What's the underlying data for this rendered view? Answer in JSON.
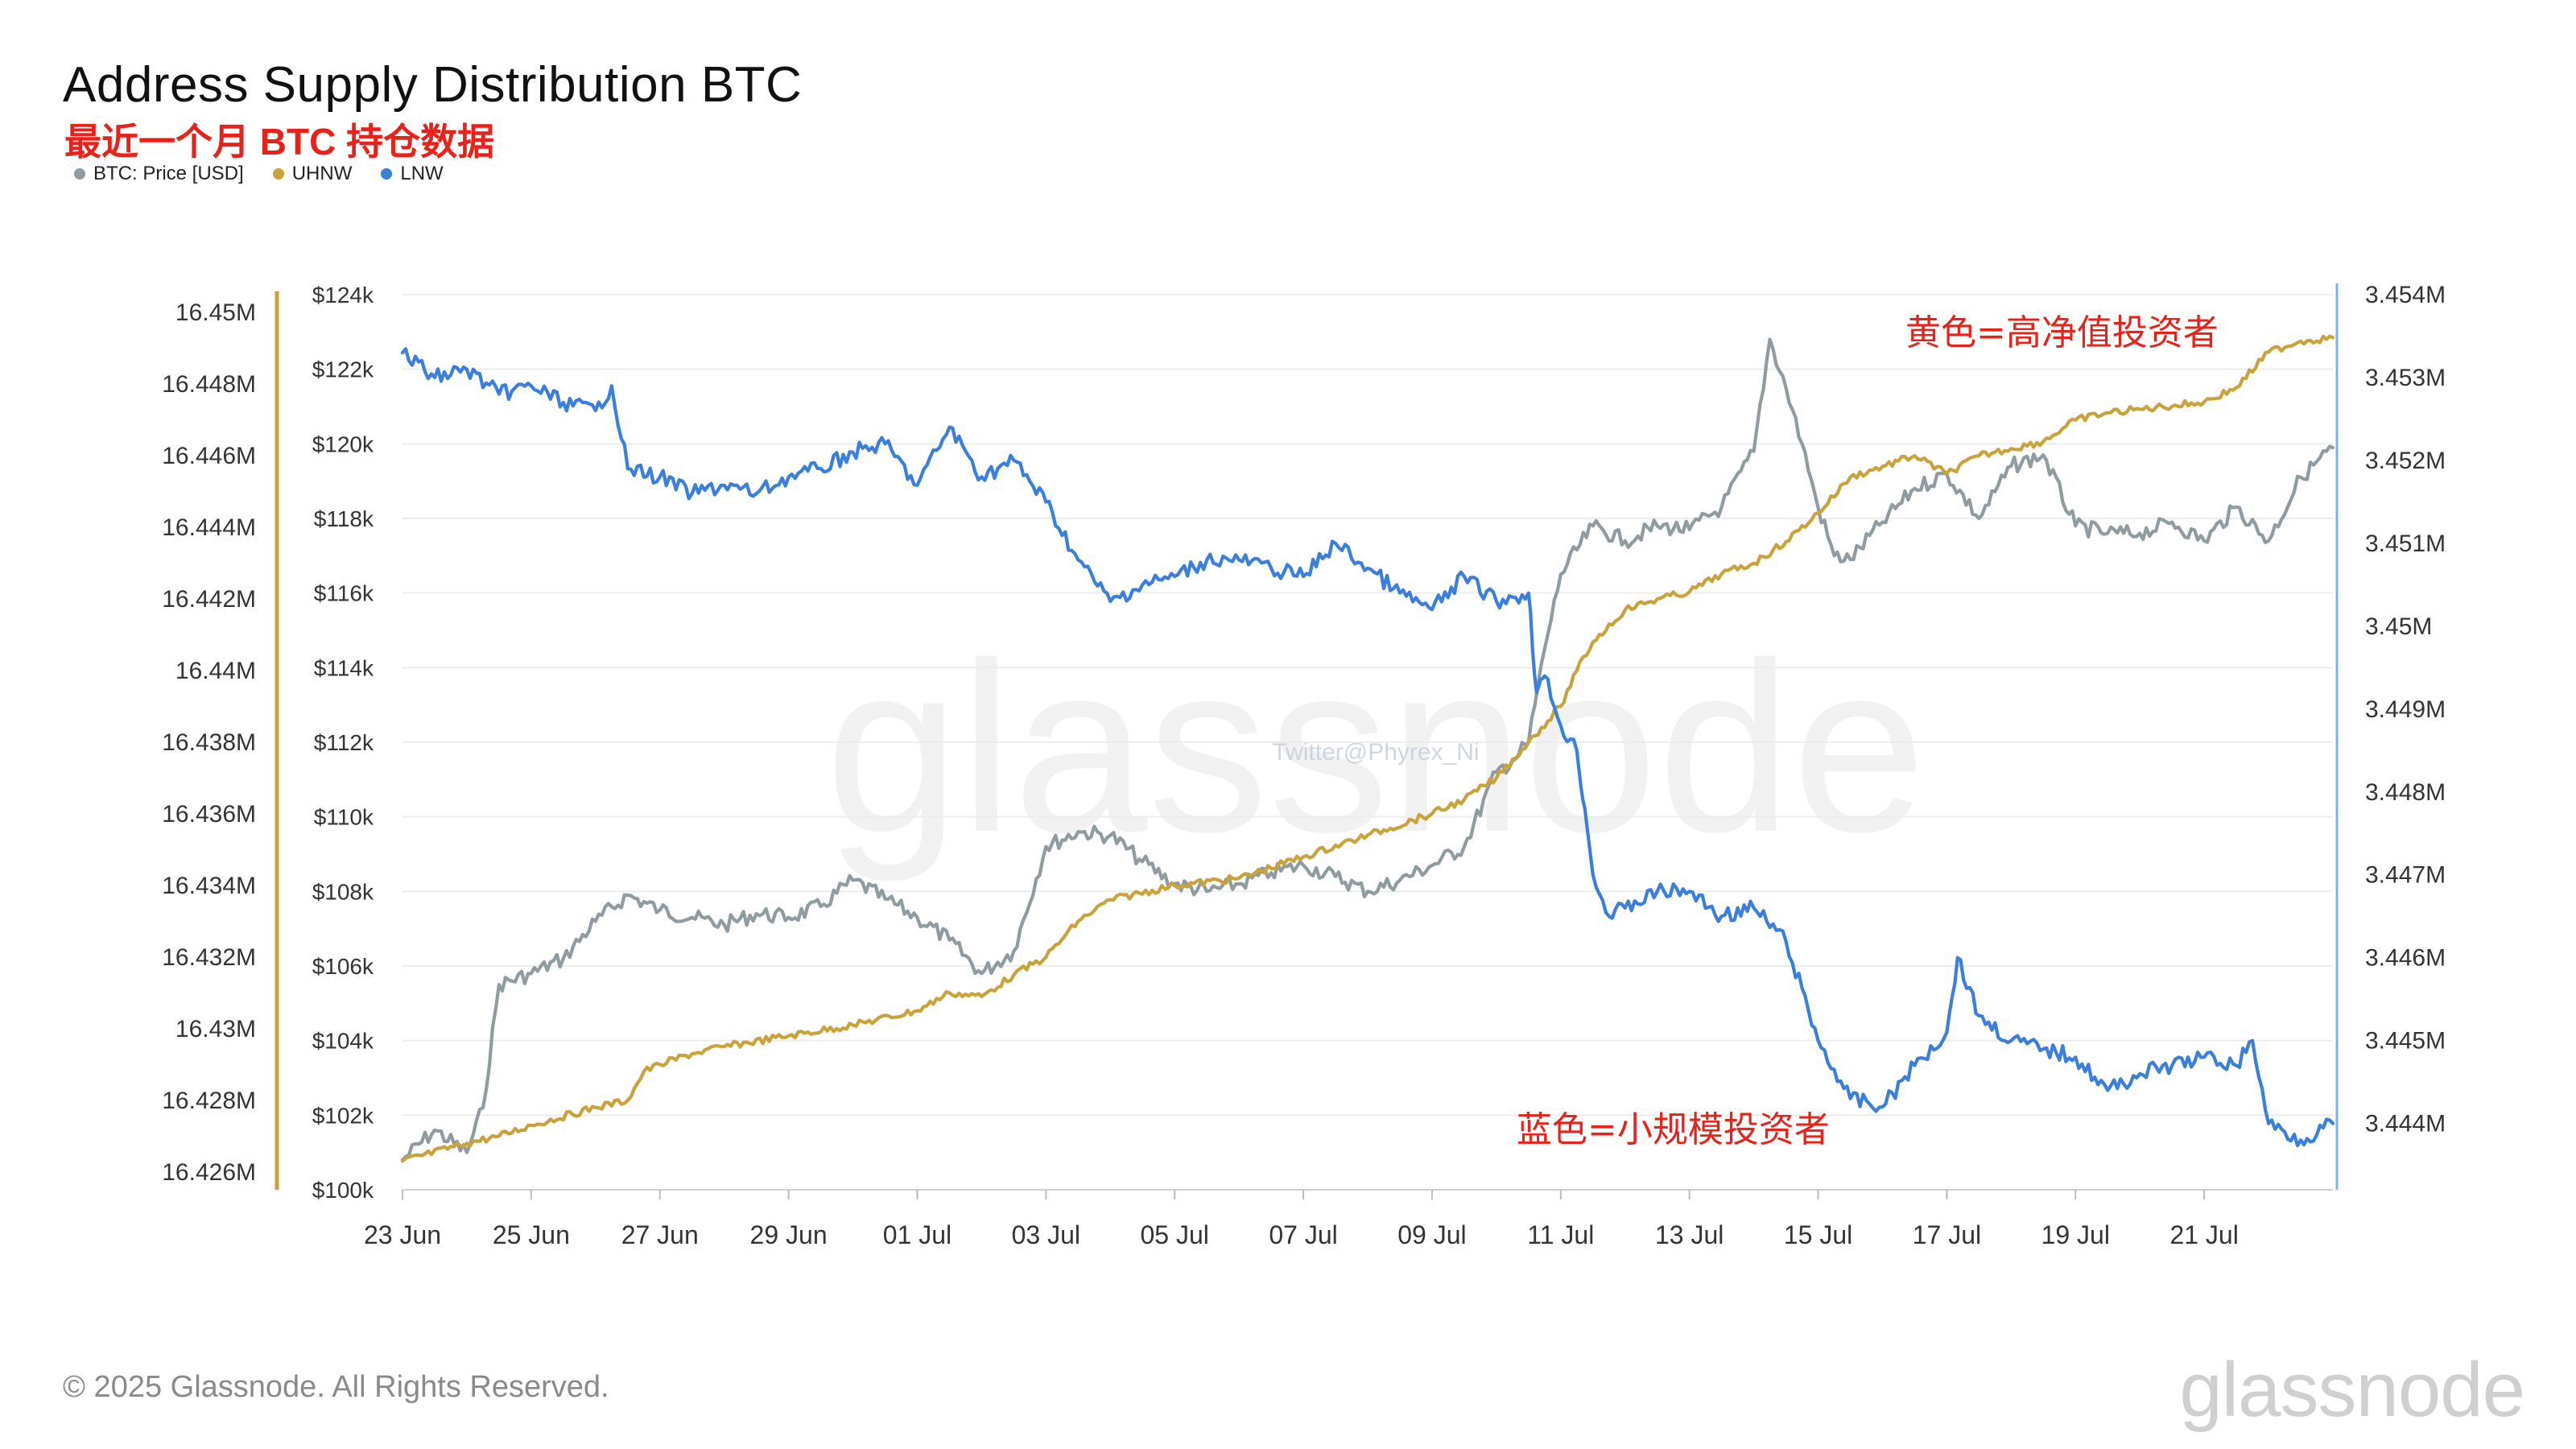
{
  "header": {
    "title": "Address Supply Distribution BTC",
    "subtitle": "最近一个月 BTC 持仓数据"
  },
  "footer": {
    "copyright": "© 2025 Glassnode. All Rights Reserved.",
    "brand": "glassnode"
  },
  "watermarks": {
    "main": "glassnode",
    "handle": "Twitter@Phyrex_Ni"
  },
  "colors": {
    "price": "#8e9ba1",
    "uhnw": "#c9a23a",
    "lnw": "#3a7fdc",
    "annotation": "#e8211a",
    "grid": "#ececec"
  },
  "chart_data": {
    "type": "line",
    "title": "Address Supply Distribution BTC",
    "subtitle": "最近一个月 BTC 持仓数据",
    "x_ticks": [
      "23 Jun",
      "25 Jun",
      "27 Jun",
      "29 Jun",
      "01 Jul",
      "03 Jul",
      "05 Jul",
      "07 Jul",
      "09 Jul",
      "11 Jul",
      "13 Jul",
      "15 Jul",
      "17 Jul",
      "19 Jul",
      "21 Jul"
    ],
    "x_range": [
      "2025-06-23",
      "2025-07-23"
    ],
    "axes": {
      "left_outer": {
        "ticks": [
          "16.45M",
          "16.448M",
          "16.446M",
          "16.444M",
          "16.442M",
          "16.44M",
          "16.438M",
          "16.436M",
          "16.434M",
          "16.432M",
          "16.43M",
          "16.428M",
          "16.426M"
        ],
        "range": [
          16425500,
          16450500
        ],
        "color": "#c9a23a"
      },
      "left_inner": {
        "ticks": [
          "$124k",
          "$122k",
          "$120k",
          "$118k",
          "$116k",
          "$114k",
          "$112k",
          "$110k",
          "$108k",
          "$106k",
          "$104k",
          "$102k",
          "$100k"
        ],
        "range": [
          100000,
          124000
        ]
      },
      "right": {
        "ticks": [
          "3.454M",
          "3.453M",
          "3.452M",
          "3.451M",
          "3.45M",
          "3.449M",
          "3.448M",
          "3.447M",
          "3.446M",
          "3.445M",
          "3.444M"
        ],
        "range": [
          3443200,
          3454000
        ],
        "color": "#3a7fdc"
      }
    },
    "legend": [
      {
        "name": "BTC: Price [USD]",
        "color": "#8e9ba1"
      },
      {
        "name": "UHNW",
        "color": "#c9a23a"
      },
      {
        "name": "LNW",
        "color": "#3a7fdc"
      }
    ],
    "legend_position": "top-left",
    "grid": true,
    "series": [
      {
        "name": "BTC: Price [USD]",
        "axis": "left_inner",
        "color": "#8e9ba1",
        "points": [
          [
            "2025-06-23T00:00",
            100800
          ],
          [
            "2025-06-23T12:00",
            101600
          ],
          [
            "2025-06-24T00:00",
            101000
          ],
          [
            "2025-06-24T06:00",
            102200
          ],
          [
            "2025-06-24T12:00",
            105500
          ],
          [
            "2025-06-25T00:00",
            105800
          ],
          [
            "2025-06-25T12:00",
            106200
          ],
          [
            "2025-06-26T00:00",
            107200
          ],
          [
            "2025-06-26T12:00",
            107900
          ],
          [
            "2025-06-27T00:00",
            107500
          ],
          [
            "2025-06-27T12:00",
            107300
          ],
          [
            "2025-06-28T00:00",
            107100
          ],
          [
            "2025-06-28T12:00",
            107400
          ],
          [
            "2025-06-29T00:00",
            107300
          ],
          [
            "2025-06-29T12:00",
            107600
          ],
          [
            "2025-06-30T00:00",
            108300
          ],
          [
            "2025-06-30T12:00",
            107800
          ],
          [
            "2025-07-01T00:00",
            107300
          ],
          [
            "2025-07-01T12:00",
            106700
          ],
          [
            "2025-07-02T00:00",
            105800
          ],
          [
            "2025-07-02T12:00",
            106400
          ],
          [
            "2025-07-03T00:00",
            109200
          ],
          [
            "2025-07-03T12:00",
            109600
          ],
          [
            "2025-07-04T00:00",
            109500
          ],
          [
            "2025-07-04T12:00",
            108800
          ],
          [
            "2025-07-05T00:00",
            108200
          ],
          [
            "2025-07-05T12:00",
            108000
          ],
          [
            "2025-07-06T00:00",
            108200
          ],
          [
            "2025-07-06T12:00",
            108500
          ],
          [
            "2025-07-07T00:00",
            108700
          ],
          [
            "2025-07-07T12:00",
            108400
          ],
          [
            "2025-07-08T00:00",
            108000
          ],
          [
            "2025-07-08T12:00",
            108300
          ],
          [
            "2025-07-09T00:00",
            108700
          ],
          [
            "2025-07-09T12:00",
            109200
          ],
          [
            "2025-07-10T00:00",
            111200
          ],
          [
            "2025-07-10T06:00",
            111500
          ],
          [
            "2025-07-10T12:00",
            112000
          ],
          [
            "2025-07-10T18:00",
            114500
          ],
          [
            "2025-07-11T00:00",
            116500
          ],
          [
            "2025-07-11T12:00",
            117800
          ],
          [
            "2025-07-12T00:00",
            117400
          ],
          [
            "2025-07-12T12:00",
            117800
          ],
          [
            "2025-07-13T00:00",
            117700
          ],
          [
            "2025-07-13T12:00",
            118300
          ],
          [
            "2025-07-14T00:00",
            119800
          ],
          [
            "2025-07-14T06:00",
            122800
          ],
          [
            "2025-07-14T12:00",
            121500
          ],
          [
            "2025-07-14T18:00",
            120000
          ],
          [
            "2025-07-15T00:00",
            118300
          ],
          [
            "2025-07-15T06:00",
            117000
          ],
          [
            "2025-07-15T12:00",
            116900
          ],
          [
            "2025-07-16T00:00",
            117900
          ],
          [
            "2025-07-16T12:00",
            118800
          ],
          [
            "2025-07-17T00:00",
            119200
          ],
          [
            "2025-07-17T12:00",
            118000
          ],
          [
            "2025-07-18T00:00",
            119400
          ],
          [
            "2025-07-18T12:00",
            119700
          ],
          [
            "2025-07-19T00:00",
            117800
          ],
          [
            "2025-07-19T12:00",
            117600
          ],
          [
            "2025-07-20T00:00",
            117600
          ],
          [
            "2025-07-20T12:00",
            117900
          ],
          [
            "2025-07-21T00:00",
            117400
          ],
          [
            "2025-07-21T12:00",
            118300
          ],
          [
            "2025-07-22T00:00",
            117400
          ],
          [
            "2025-07-22T12:00",
            119100
          ],
          [
            "2025-07-23T00:00",
            119900
          ]
        ]
      },
      {
        "name": "UHNW",
        "axis": "left_outer",
        "color": "#c9a23a",
        "points": [
          [
            "2025-06-23T00:00",
            16426300
          ],
          [
            "2025-06-24T00:00",
            16426800
          ],
          [
            "2025-06-24T12:00",
            16427000
          ],
          [
            "2025-06-25T00:00",
            16427300
          ],
          [
            "2025-06-26T00:00",
            16427800
          ],
          [
            "2025-06-26T12:00",
            16428000
          ],
          [
            "2025-06-26T18:00",
            16428800
          ],
          [
            "2025-06-27T00:00",
            16429000
          ],
          [
            "2025-06-27T12:00",
            16429300
          ],
          [
            "2025-06-28T00:00",
            16429500
          ],
          [
            "2025-06-29T00:00",
            16429800
          ],
          [
            "2025-06-30T00:00",
            16430100
          ],
          [
            "2025-07-01T00:00",
            16430500
          ],
          [
            "2025-07-01T12:00",
            16431000
          ],
          [
            "2025-07-02T00:00",
            16430900
          ],
          [
            "2025-07-02T12:00",
            16431500
          ],
          [
            "2025-07-03T00:00",
            16432000
          ],
          [
            "2025-07-03T12:00",
            16433000
          ],
          [
            "2025-07-04T00:00",
            16433600
          ],
          [
            "2025-07-05T00:00",
            16434000
          ],
          [
            "2025-07-06T00:00",
            16434200
          ],
          [
            "2025-07-07T00:00",
            16434800
          ],
          [
            "2025-07-08T00:00",
            16435400
          ],
          [
            "2025-07-09T00:00",
            16436000
          ],
          [
            "2025-07-09T12:00",
            16436400
          ],
          [
            "2025-07-10T00:00",
            16437000
          ],
          [
            "2025-07-10T12:00",
            16438000
          ],
          [
            "2025-07-11T00:00",
            16439000
          ],
          [
            "2025-07-11T06:00",
            16440000
          ],
          [
            "2025-07-11T12:00",
            16440800
          ],
          [
            "2025-07-12T00:00",
            16441700
          ],
          [
            "2025-07-12T12:00",
            16442000
          ],
          [
            "2025-07-13T00:00",
            16442200
          ],
          [
            "2025-07-13T12:00",
            16442700
          ],
          [
            "2025-07-14T00:00",
            16443000
          ],
          [
            "2025-07-14T12:00",
            16443600
          ],
          [
            "2025-07-15T00:00",
            16444400
          ],
          [
            "2025-07-15T12:00",
            16445400
          ],
          [
            "2025-07-16T00:00",
            16445700
          ],
          [
            "2025-07-16T12:00",
            16446000
          ],
          [
            "2025-07-17T00:00",
            16445500
          ],
          [
            "2025-07-17T12:00",
            16446000
          ],
          [
            "2025-07-18T00:00",
            16446200
          ],
          [
            "2025-07-18T12:00",
            16446400
          ],
          [
            "2025-07-19T00:00",
            16447000
          ],
          [
            "2025-07-19T12:00",
            16447200
          ],
          [
            "2025-07-20T00:00",
            16447300
          ],
          [
            "2025-07-21T00:00",
            16447500
          ],
          [
            "2025-07-21T12:00",
            16447900
          ],
          [
            "2025-07-22T00:00",
            16448900
          ],
          [
            "2025-07-22T12:00",
            16449200
          ],
          [
            "2025-07-23T00:00",
            16449300
          ]
        ]
      },
      {
        "name": "LNW",
        "axis": "right",
        "color": "#3a7fdc",
        "points": [
          [
            "2025-06-23T00:00",
            3453300
          ],
          [
            "2025-06-23T12:00",
            3453000
          ],
          [
            "2025-06-24T00:00",
            3453100
          ],
          [
            "2025-06-24T12:00",
            3452800
          ],
          [
            "2025-06-25T00:00",
            3452900
          ],
          [
            "2025-06-25T12:00",
            3452700
          ],
          [
            "2025-06-26T00:00",
            3452600
          ],
          [
            "2025-06-26T06:00",
            3452900
          ],
          [
            "2025-06-26T12:00",
            3451900
          ],
          [
            "2025-06-27T00:00",
            3451800
          ],
          [
            "2025-06-27T12:00",
            3451600
          ],
          [
            "2025-06-28T00:00",
            3451700
          ],
          [
            "2025-06-28T12:00",
            3451600
          ],
          [
            "2025-06-29T00:00",
            3451800
          ],
          [
            "2025-06-29T12:00",
            3451900
          ],
          [
            "2025-06-30T00:00",
            3452100
          ],
          [
            "2025-06-30T12:00",
            3452200
          ],
          [
            "2025-07-01T00:00",
            3451700
          ],
          [
            "2025-07-01T12:00",
            3452400
          ],
          [
            "2025-07-02T00:00",
            3451800
          ],
          [
            "2025-07-02T12:00",
            3452000
          ],
          [
            "2025-07-03T00:00",
            3451500
          ],
          [
            "2025-07-03T12:00",
            3450800
          ],
          [
            "2025-07-04T00:00",
            3450300
          ],
          [
            "2025-07-04T12:00",
            3450500
          ],
          [
            "2025-07-05T00:00",
            3450600
          ],
          [
            "2025-07-05T12:00",
            3450800
          ],
          [
            "2025-07-06T00:00",
            3450800
          ],
          [
            "2025-07-06T12:00",
            3450700
          ],
          [
            "2025-07-07T00:00",
            3450600
          ],
          [
            "2025-07-07T12:00",
            3451000
          ],
          [
            "2025-07-08T00:00",
            3450700
          ],
          [
            "2025-07-08T12:00",
            3450400
          ],
          [
            "2025-07-09T00:00",
            3450200
          ],
          [
            "2025-07-09T12:00",
            3450600
          ],
          [
            "2025-07-10T00:00",
            3450300
          ],
          [
            "2025-07-10T12:00",
            3450400
          ],
          [
            "2025-07-10T15:00",
            3449200
          ],
          [
            "2025-07-10T18:00",
            3449400
          ],
          [
            "2025-07-11T00:00",
            3448800
          ],
          [
            "2025-07-11T06:00",
            3448500
          ],
          [
            "2025-07-11T09:00",
            3447800
          ],
          [
            "2025-07-11T12:00",
            3447000
          ],
          [
            "2025-07-11T18:00",
            3446500
          ],
          [
            "2025-07-12T00:00",
            3446600
          ],
          [
            "2025-07-12T12:00",
            3446800
          ],
          [
            "2025-07-13T00:00",
            3446800
          ],
          [
            "2025-07-13T12:00",
            3446500
          ],
          [
            "2025-07-14T00:00",
            3446600
          ],
          [
            "2025-07-14T12:00",
            3446200
          ],
          [
            "2025-07-15T00:00",
            3445000
          ],
          [
            "2025-07-15T12:00",
            3444300
          ],
          [
            "2025-07-16T00:00",
            3444200
          ],
          [
            "2025-07-16T12:00",
            3444700
          ],
          [
            "2025-07-17T00:00",
            3445100
          ],
          [
            "2025-07-17T04:00",
            3446000
          ],
          [
            "2025-07-17T12:00",
            3445300
          ],
          [
            "2025-07-18T00:00",
            3445000
          ],
          [
            "2025-07-18T12:00",
            3444900
          ],
          [
            "2025-07-19T00:00",
            3444800
          ],
          [
            "2025-07-19T12:00",
            3444400
          ],
          [
            "2025-07-20T00:00",
            3444600
          ],
          [
            "2025-07-20T12:00",
            3444700
          ],
          [
            "2025-07-21T00:00",
            3444800
          ],
          [
            "2025-07-21T12:00",
            3444700
          ],
          [
            "2025-07-21T18:00",
            3445000
          ],
          [
            "2025-07-22T00:00",
            3444000
          ],
          [
            "2025-07-22T12:00",
            3443800
          ],
          [
            "2025-07-23T00:00",
            3444000
          ]
        ]
      }
    ],
    "annotations": [
      {
        "text": "黄色=高净值投资者",
        "near_series": "UHNW",
        "color": "#e8211a"
      },
      {
        "text": "蓝色=小规模投资者",
        "near_series": "LNW",
        "color": "#e8211a"
      }
    ]
  }
}
